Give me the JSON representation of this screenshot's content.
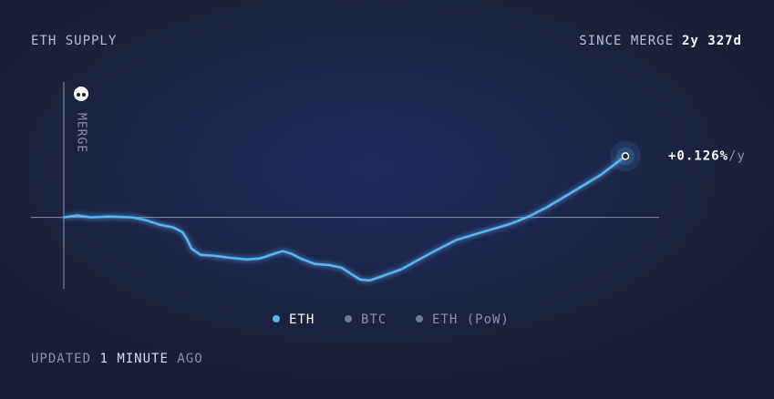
{
  "chart_data": {
    "type": "line",
    "title": "ETH SUPPLY",
    "since_label": "SINCE MERGE",
    "since_value": "2y 327d",
    "merge_marker": {
      "label": "MERGE",
      "x": 0
    },
    "reference_line": 0,
    "x": [
      0,
      26,
      51,
      86,
      129,
      154,
      180,
      206,
      223,
      232,
      240,
      257,
      283,
      309,
      343,
      369,
      395,
      412,
      429,
      446,
      472,
      498,
      523,
      541,
      558,
      575,
      601,
      635,
      669,
      704,
      738,
      772,
      806,
      841,
      875,
      909,
      944,
      978,
      1012,
      1057
    ],
    "series": [
      {
        "color": "#5ab4f5",
        "values": [
          0,
          0.011,
          0,
          0.005,
          0,
          -0.016,
          -0.043,
          -0.059,
          -0.086,
          -0.129,
          -0.183,
          -0.22,
          -0.226,
          -0.237,
          -0.247,
          -0.242,
          -0.215,
          -0.199,
          -0.215,
          -0.242,
          -0.274,
          -0.28,
          -0.296,
          -0.333,
          -0.366,
          -0.371,
          -0.344,
          -0.306,
          -0.247,
          -0.188,
          -0.134,
          -0.102,
          -0.07,
          -0.038,
          0.005,
          0.059,
          0.124,
          0.188,
          0.253,
          0.36
        ]
      }
    ],
    "end_annotation": {
      "value": "+0.126%",
      "unit": "/y"
    },
    "xlim": [
      0,
      1057
    ],
    "ylim": [
      -0.42,
      0.78
    ],
    "legend": [
      {
        "name": "ETH",
        "color": "#5ab4f5",
        "active": true
      },
      {
        "name": "BTC",
        "color": "#8a90a8",
        "active": false
      },
      {
        "name": "ETH (PoW)",
        "color": "#8a90a8",
        "active": false
      }
    ],
    "footer": {
      "prefix": "UPDATED",
      "count": 1,
      "unit": "MINUTE",
      "suffix": "AGO"
    }
  }
}
